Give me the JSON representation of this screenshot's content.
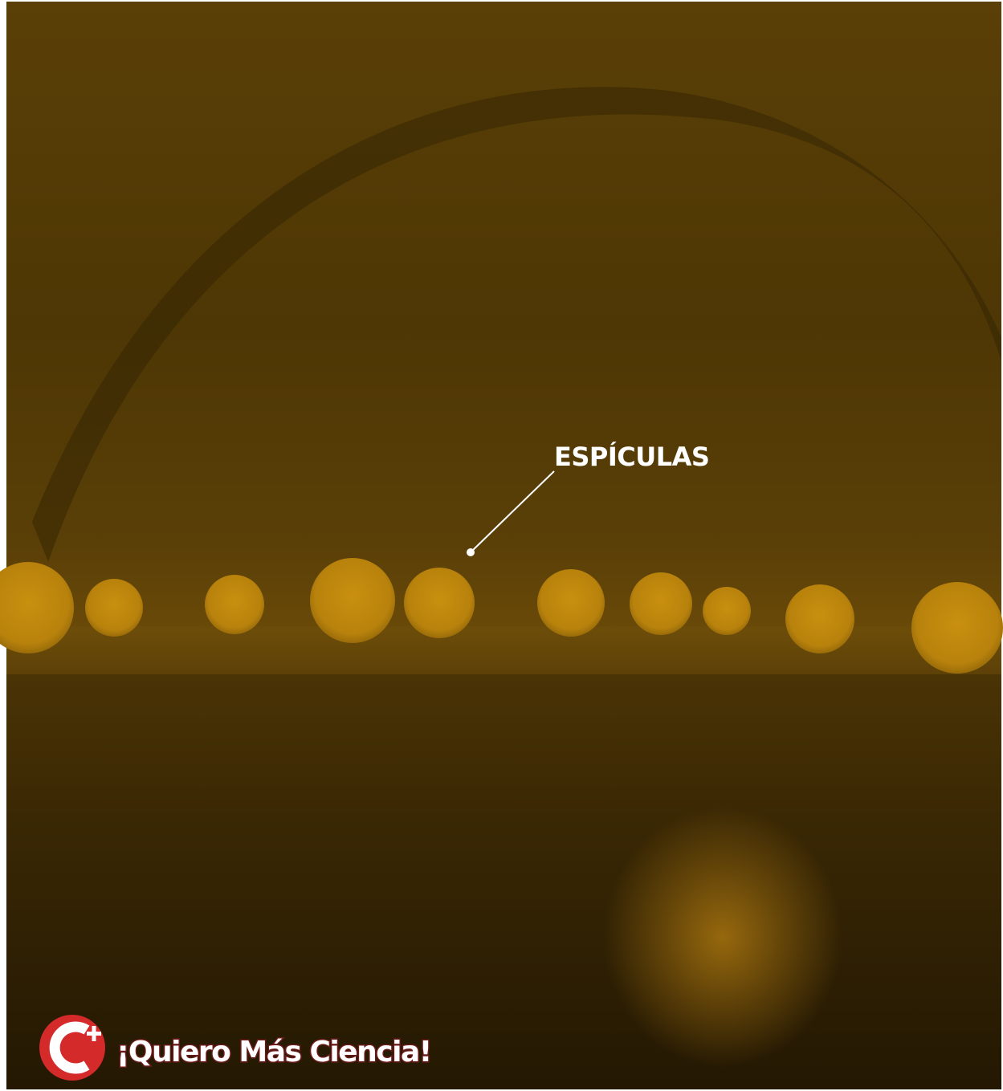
{
  "annotation": {
    "label": "ESPÍCULAS"
  },
  "logo": {
    "text": "¡Quiero Más Ciencia!"
  }
}
